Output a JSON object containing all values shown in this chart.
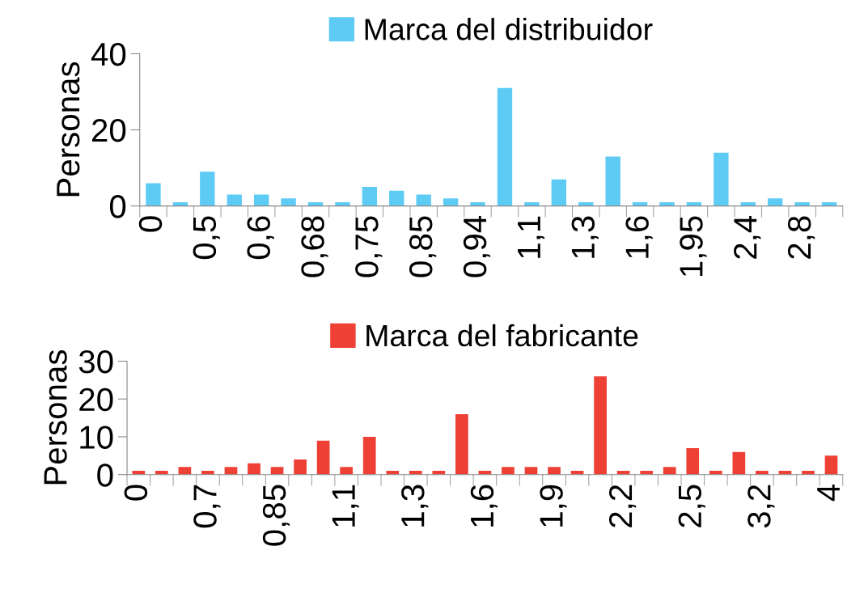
{
  "chart_data": [
    {
      "type": "bar",
      "ylabel": "Personas",
      "categories": [
        "0",
        null,
        "0,5",
        null,
        "0,6",
        null,
        "0,68",
        null,
        "0,75",
        null,
        "0,85",
        null,
        "0,94",
        null,
        "1,1",
        null,
        "1,3",
        null,
        "1,6",
        null,
        "1,95",
        null,
        "2,4",
        null,
        "2,8",
        null
      ],
      "series": [
        {
          "name": "Marca del distribuidor",
          "color": "#5ecbf5",
          "values": [
            6,
            1,
            9,
            3,
            3,
            2,
            1,
            1,
            5,
            4,
            3,
            2,
            1,
            31,
            1,
            7,
            1,
            13,
            1,
            1,
            1,
            14,
            1,
            2,
            1,
            1
          ]
        }
      ],
      "ylim": [
        0,
        40
      ],
      "yticks": [
        0,
        20,
        40
      ],
      "grid": false,
      "legend": "top"
    },
    {
      "type": "bar",
      "ylabel": "Personas",
      "categories": [
        "0",
        null,
        null,
        "0,7",
        null,
        null,
        "0,85",
        null,
        null,
        "1,1",
        null,
        null,
        "1,3",
        null,
        null,
        "1,6",
        null,
        null,
        "1,9",
        null,
        null,
        "2,2",
        null,
        null,
        "2,5",
        null,
        null,
        "3,2",
        null,
        null,
        "4"
      ],
      "series": [
        {
          "name": "Marca del fabricante",
          "color": "#ee4035",
          "values": [
            1,
            1,
            2,
            1,
            2,
            3,
            2,
            4,
            9,
            2,
            10,
            1,
            1,
            1,
            16,
            1,
            2,
            2,
            2,
            1,
            26,
            1,
            1,
            2,
            7,
            1,
            6,
            1,
            1,
            1,
            5
          ]
        }
      ],
      "ylim": [
        0,
        30
      ],
      "yticks": [
        0,
        10,
        20,
        30
      ],
      "grid": false,
      "legend": "top"
    }
  ]
}
